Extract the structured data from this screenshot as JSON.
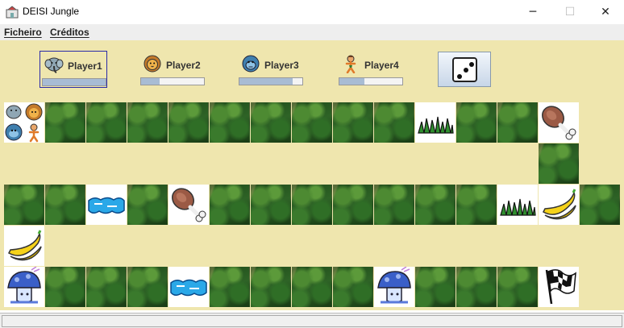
{
  "window": {
    "title": "DEISI Jungle",
    "minimize": "─",
    "maximize": "☐",
    "close": "✕"
  },
  "menu": {
    "items": [
      "Ficheiro",
      "Créditos"
    ]
  },
  "players": [
    {
      "label": "Player1",
      "animal": "elephant-icon",
      "progress": 1.0,
      "selected": true
    },
    {
      "label": "Player2",
      "animal": "lion-icon",
      "progress": 0.3,
      "selected": false
    },
    {
      "label": "Player3",
      "animal": "gorilla-icon",
      "progress": 0.85,
      "selected": false
    },
    {
      "label": "Player4",
      "animal": "tarzan-icon",
      "progress": 0.4,
      "selected": false
    }
  ],
  "dice": {
    "value": 3
  },
  "board": {
    "rows": [
      [
        "players",
        "jungle",
        "jungle",
        "jungle",
        "jungle",
        "jungle",
        "jungle",
        "jungle",
        "jungle",
        "jungle",
        "grass",
        "jungle",
        "jungle",
        "meat"
      ],
      [
        "",
        "",
        "",
        "",
        "",
        "",
        "",
        "",
        "",
        "",
        "",
        "",
        "",
        "jungle"
      ],
      [
        "jungle",
        "jungle",
        "water",
        "jungle",
        "meat",
        "jungle",
        "jungle",
        "jungle",
        "jungle",
        "jungle",
        "jungle",
        "jungle",
        "grass",
        "banana",
        "jungle"
      ],
      [
        "banana",
        "",
        "",
        "",
        "",
        "",
        "",
        "",
        "",
        "",
        "",
        "",
        "",
        "",
        ""
      ],
      [
        "mushroom",
        "jungle",
        "jungle",
        "jungle",
        "water",
        "jungle",
        "jungle",
        "jungle",
        "jungle",
        "mushroom",
        "jungle",
        "jungle",
        "jungle",
        "finish"
      ]
    ]
  },
  "colors": {
    "background": "#efe6ae",
    "selected_border": "#2a2aa8",
    "progress_fill": "#a8bcd4"
  }
}
